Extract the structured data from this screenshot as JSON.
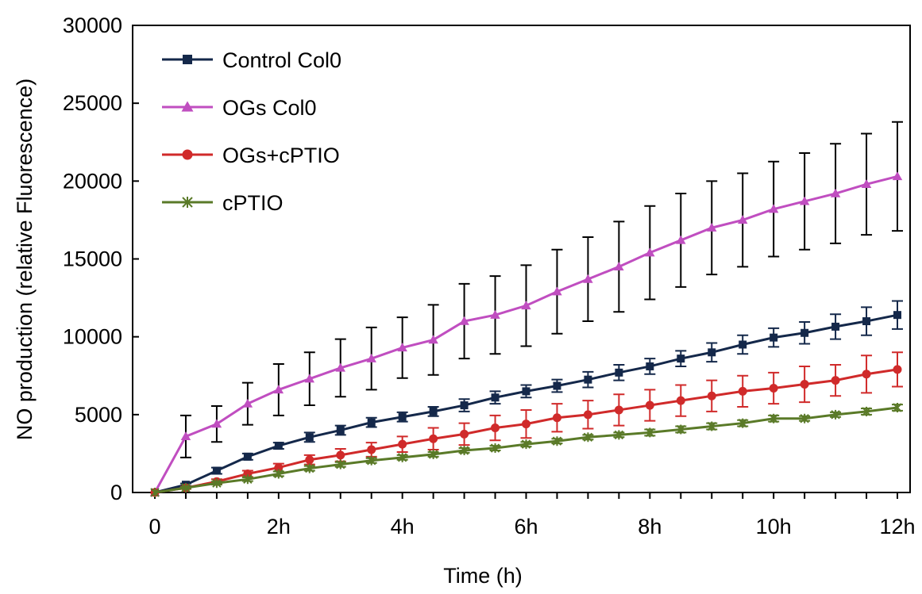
{
  "chart_data": {
    "type": "line",
    "title": "",
    "xlabel": "Time (h)",
    "ylabel": "NO production (relative Fluorescence)",
    "xlim": [
      0,
      24
    ],
    "ylim": [
      0,
      30000
    ],
    "x_tick_values": [
      0,
      4,
      8,
      12,
      16,
      20,
      24
    ],
    "x_tick_labels": [
      "0",
      "2h",
      "4h",
      "6h",
      "8h",
      "10h",
      "12h"
    ],
    "y_ticks": [
      0,
      5000,
      10000,
      15000,
      20000,
      25000,
      30000
    ],
    "y_tick_labels": [
      "0",
      "5000",
      "10000",
      "15000",
      "20000",
      "25000",
      "30000"
    ],
    "legend_position": "top-left",
    "grid": false,
    "x": [
      0,
      1,
      2,
      3,
      4,
      5,
      6,
      7,
      8,
      9,
      10,
      11,
      12,
      13,
      14,
      15,
      16,
      17,
      18,
      19,
      20,
      21,
      22,
      23,
      24
    ],
    "series": [
      {
        "name": "Control Col0",
        "color": "#14284a",
        "marker": "square",
        "values": [
          0,
          500,
          1400,
          2300,
          3000,
          3550,
          4000,
          4500,
          4850,
          5200,
          5600,
          6100,
          6500,
          6850,
          7250,
          7700,
          8100,
          8600,
          9000,
          9500,
          9950,
          10250,
          10650,
          11000,
          11400
        ],
        "errors": [
          0,
          80,
          200,
          200,
          200,
          300,
          300,
          300,
          300,
          300,
          400,
          400,
          400,
          400,
          500,
          500,
          500,
          500,
          600,
          600,
          600,
          700,
          800,
          900,
          900
        ]
      },
      {
        "name": "OGs Col0",
        "color": "#c04ec0",
        "marker": "triangle",
        "values": [
          0,
          3600,
          4400,
          5700,
          6600,
          7300,
          8000,
          8600,
          9300,
          9800,
          11000,
          11400,
          12000,
          12900,
          13700,
          14500,
          15400,
          16200,
          17000,
          17500,
          18200,
          18700,
          19200,
          19800,
          20300
        ],
        "errors": [
          0,
          1350,
          1150,
          1350,
          1650,
          1700,
          1850,
          2000,
          1950,
          2250,
          2400,
          2500,
          2600,
          2700,
          2700,
          2900,
          3000,
          3000,
          3000,
          3000,
          3050,
          3100,
          3200,
          3250,
          3500
        ]
      },
      {
        "name": "OGs+cPTIO",
        "color": "#d02a2a",
        "marker": "circle",
        "values": [
          0,
          300,
          700,
          1200,
          1600,
          2100,
          2400,
          2750,
          3100,
          3450,
          3750,
          4150,
          4400,
          4800,
          5000,
          5300,
          5600,
          5900,
          6200,
          6500,
          6700,
          6950,
          7200,
          7600,
          7900
        ],
        "errors": [
          0,
          80,
          150,
          200,
          250,
          300,
          400,
          450,
          500,
          700,
          700,
          800,
          900,
          900,
          900,
          1000,
          1000,
          1000,
          1000,
          1000,
          1000,
          1150,
          1000,
          1200,
          1100
        ]
      },
      {
        "name": "cPTIO",
        "color": "#5a7a28",
        "marker": "x",
        "values": [
          0,
          300,
          600,
          850,
          1200,
          1550,
          1800,
          2050,
          2250,
          2450,
          2700,
          2850,
          3100,
          3300,
          3550,
          3700,
          3850,
          4050,
          4250,
          4450,
          4750,
          4750,
          5000,
          5200,
          5450
        ],
        "errors": [
          0,
          60,
          100,
          120,
          150,
          150,
          150,
          150,
          150,
          150,
          150,
          150,
          150,
          150,
          150,
          150,
          200,
          200,
          200,
          200,
          200,
          150,
          150,
          200,
          200
        ]
      }
    ]
  }
}
